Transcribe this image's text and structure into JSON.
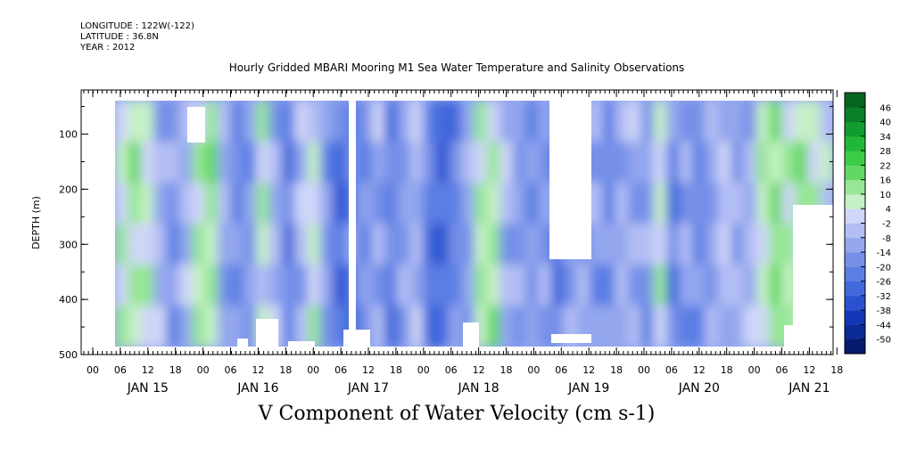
{
  "header": {
    "longitude": "LONGITUDE : 122W(-122)",
    "latitude": "LATITUDE : 36.8N",
    "year": "YEAR : 2012"
  },
  "chart_data": {
    "type": "heatmap",
    "title": "Hourly Gridded MBARI Mooring M1 Sea Water Temperature and Salinity Observations",
    "xlabel": "",
    "ylabel": "DEPTH (m)",
    "quantity": "V Component of Water Velocity (cm s-1)",
    "x_range": [
      "2012-01-14T20:00",
      "2012-01-21T20:00"
    ],
    "ylim": [
      500,
      20
    ],
    "y_ticks": [
      100,
      200,
      300,
      400,
      500
    ],
    "x_hour_ticks": [
      "00",
      "06",
      "12",
      "18",
      "00",
      "06",
      "12",
      "18",
      "00",
      "06",
      "12",
      "18",
      "00",
      "06",
      "12",
      "18",
      "00",
      "06",
      "12",
      "18",
      "00",
      "06",
      "12",
      "18",
      "00",
      "06",
      "12",
      "18"
    ],
    "x_day_labels": [
      "JAN 15",
      "JAN 16",
      "JAN 17",
      "JAN 18",
      "JAN 19",
      "JAN 20",
      "JAN 21"
    ],
    "colorbar": {
      "levels": [
        -50,
        -44,
        -38,
        -32,
        -26,
        -20,
        -14,
        -8,
        -2,
        4,
        10,
        16,
        22,
        28,
        34,
        40,
        46
      ],
      "labels": [
        "46",
        "40",
        "34",
        "28",
        "22",
        "16",
        "10",
        "4",
        "-2",
        "-8",
        "-14",
        "-20",
        "-26",
        "-32",
        "-38",
        "-44",
        "-50"
      ],
      "colors": [
        "#061a6e",
        "#0a2a96",
        "#1238b8",
        "#2a52d0",
        "#4168dc",
        "#5a7ee4",
        "#7690e8",
        "#93a6ee",
        "#b3bef4",
        "#cfd6f8",
        "#c6f0c6",
        "#96e696",
        "#62d862",
        "#3ccc48",
        "#20b838",
        "#119c30",
        "#08802a",
        "#04661f"
      ]
    },
    "bands": [
      {
        "day": "JAN 15",
        "v": [
          8,
          12,
          4,
          -6,
          -14,
          -8,
          10,
          14
        ]
      },
      {
        "day": "JAN 16",
        "v": [
          -10,
          -18,
          -12,
          6,
          -8,
          -20,
          -6,
          4
        ]
      },
      {
        "day": "JAN 17",
        "v": [
          -14,
          -26,
          -20,
          -16,
          -8,
          -22,
          -12,
          -4
        ]
      },
      {
        "day": "JAN 18",
        "v": [
          -22,
          -30,
          -18,
          -10,
          8,
          12,
          -6,
          -14
        ]
      },
      {
        "day": "JAN 19",
        "v": [
          -16,
          -10,
          -20,
          -14,
          -8,
          -12,
          -18,
          -6
        ]
      },
      {
        "day": "JAN 20",
        "v": [
          -8,
          -14,
          6,
          -20,
          -12,
          -18,
          -10,
          -4
        ]
      },
      {
        "day": "JAN 21",
        "v": [
          -12,
          -6,
          8,
          14,
          10,
          12,
          6,
          4
        ]
      }
    ]
  }
}
